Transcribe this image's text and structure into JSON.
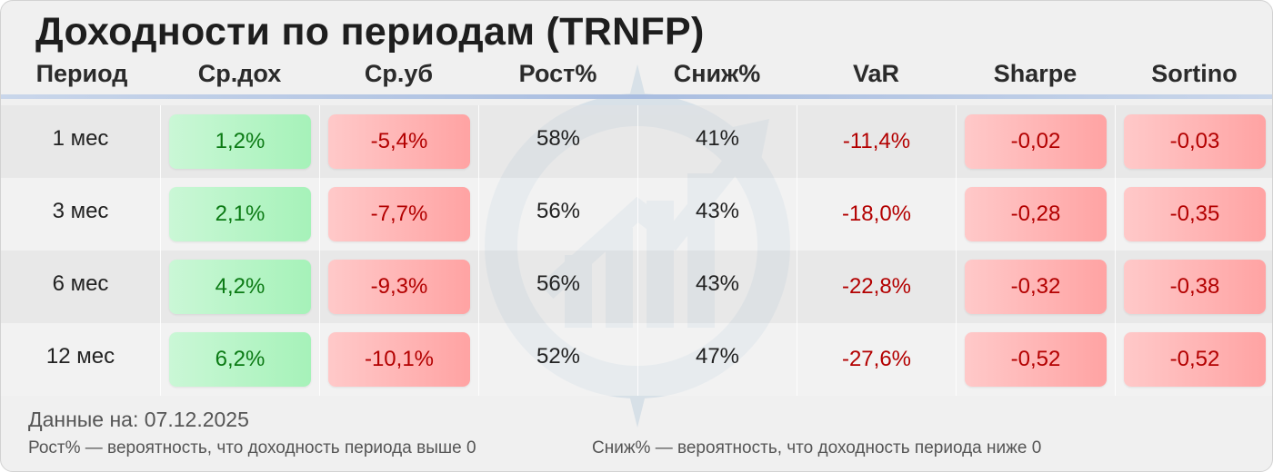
{
  "title": "Доходности по периодам (TRNFP)",
  "columns": [
    "Период",
    "Ср.дох",
    "Ср.уб",
    "Рост%",
    "Сниж%",
    "VaR",
    "Sharpe",
    "Sortino"
  ],
  "rows": [
    {
      "period": "1 мес",
      "avg_gain": "1,2%",
      "avg_loss": "-5,4%",
      "up_pct": "58%",
      "down_pct": "41%",
      "var": "-11,4%",
      "sharpe": "-0,02",
      "sortino": "-0,03"
    },
    {
      "period": "3 мес",
      "avg_gain": "2,1%",
      "avg_loss": "-7,7%",
      "up_pct": "56%",
      "down_pct": "43%",
      "var": "-18,0%",
      "sharpe": "-0,28",
      "sortino": "-0,35"
    },
    {
      "period": "6 мес",
      "avg_gain": "4,2%",
      "avg_loss": "-9,3%",
      "up_pct": "56%",
      "down_pct": "43%",
      "var": "-22,8%",
      "sharpe": "-0,32",
      "sortino": "-0,38"
    },
    {
      "period": "12 мес",
      "avg_gain": "6,2%",
      "avg_loss": "-10,1%",
      "up_pct": "52%",
      "down_pct": "47%",
      "var": "-27,6%",
      "sharpe": "-0,52",
      "sortino": "-0,52"
    }
  ],
  "footer": {
    "date_text": "Данные на: 07.12.2025",
    "note_up": "Рост% — вероятность, что доходность периода выше 0",
    "note_down": "Сниж% — вероятность, что доходность периода ниже 0"
  },
  "colors": {
    "positive_text": "#0b7a14",
    "negative_text": "#b30000",
    "positive_badge": "#b6f4c5",
    "negative_badge": "#ffb6b6",
    "header_line": "#a9bde0"
  },
  "watermark_icon": "growth-chart-compass-icon"
}
